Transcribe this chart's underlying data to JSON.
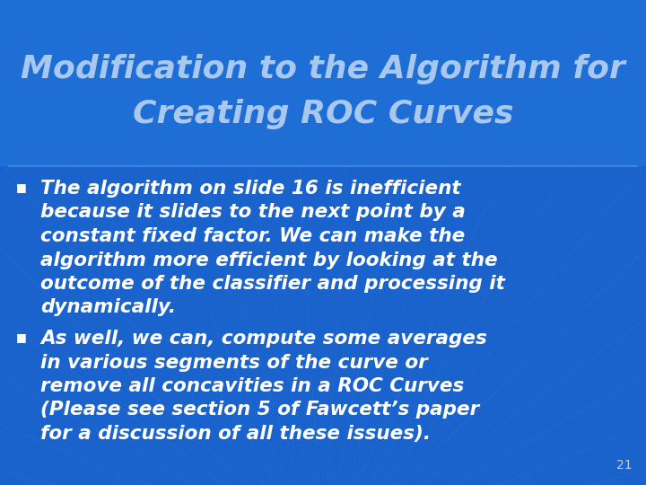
{
  "title_line1": "Modification to the Algorithm for",
  "title_line2": "Creating ROC Curves",
  "bullet1_lines": [
    "The algorithm on slide 16 is inefficient",
    "because it slides to the next point by a",
    "constant fixed factor. We can make the",
    "algorithm more efficient by looking at the",
    "outcome of the classifier and processing it",
    "dynamically."
  ],
  "bullet2_lines": [
    "As well, we can, compute some averages",
    "in various segments of the curve or",
    "remove all concavities in a ROC Curves",
    "(Please see section 5 of Fawcett’s paper",
    "for a discussion of all these issues)."
  ],
  "slide_number": "21",
  "bg_color": "#1a62cc",
  "bg_color_top": "#1e6ed6",
  "title_color": "#a8c8f0",
  "body_color": "#ffffff",
  "bullet_color": "#ffffff",
  "slide_number_color": "#cccccc",
  "fan_line_color": "#3070d8",
  "title_fontsize": 26,
  "body_fontsize": 15.5,
  "slide_number_fontsize": 10,
  "bullet_fontsize": 9
}
